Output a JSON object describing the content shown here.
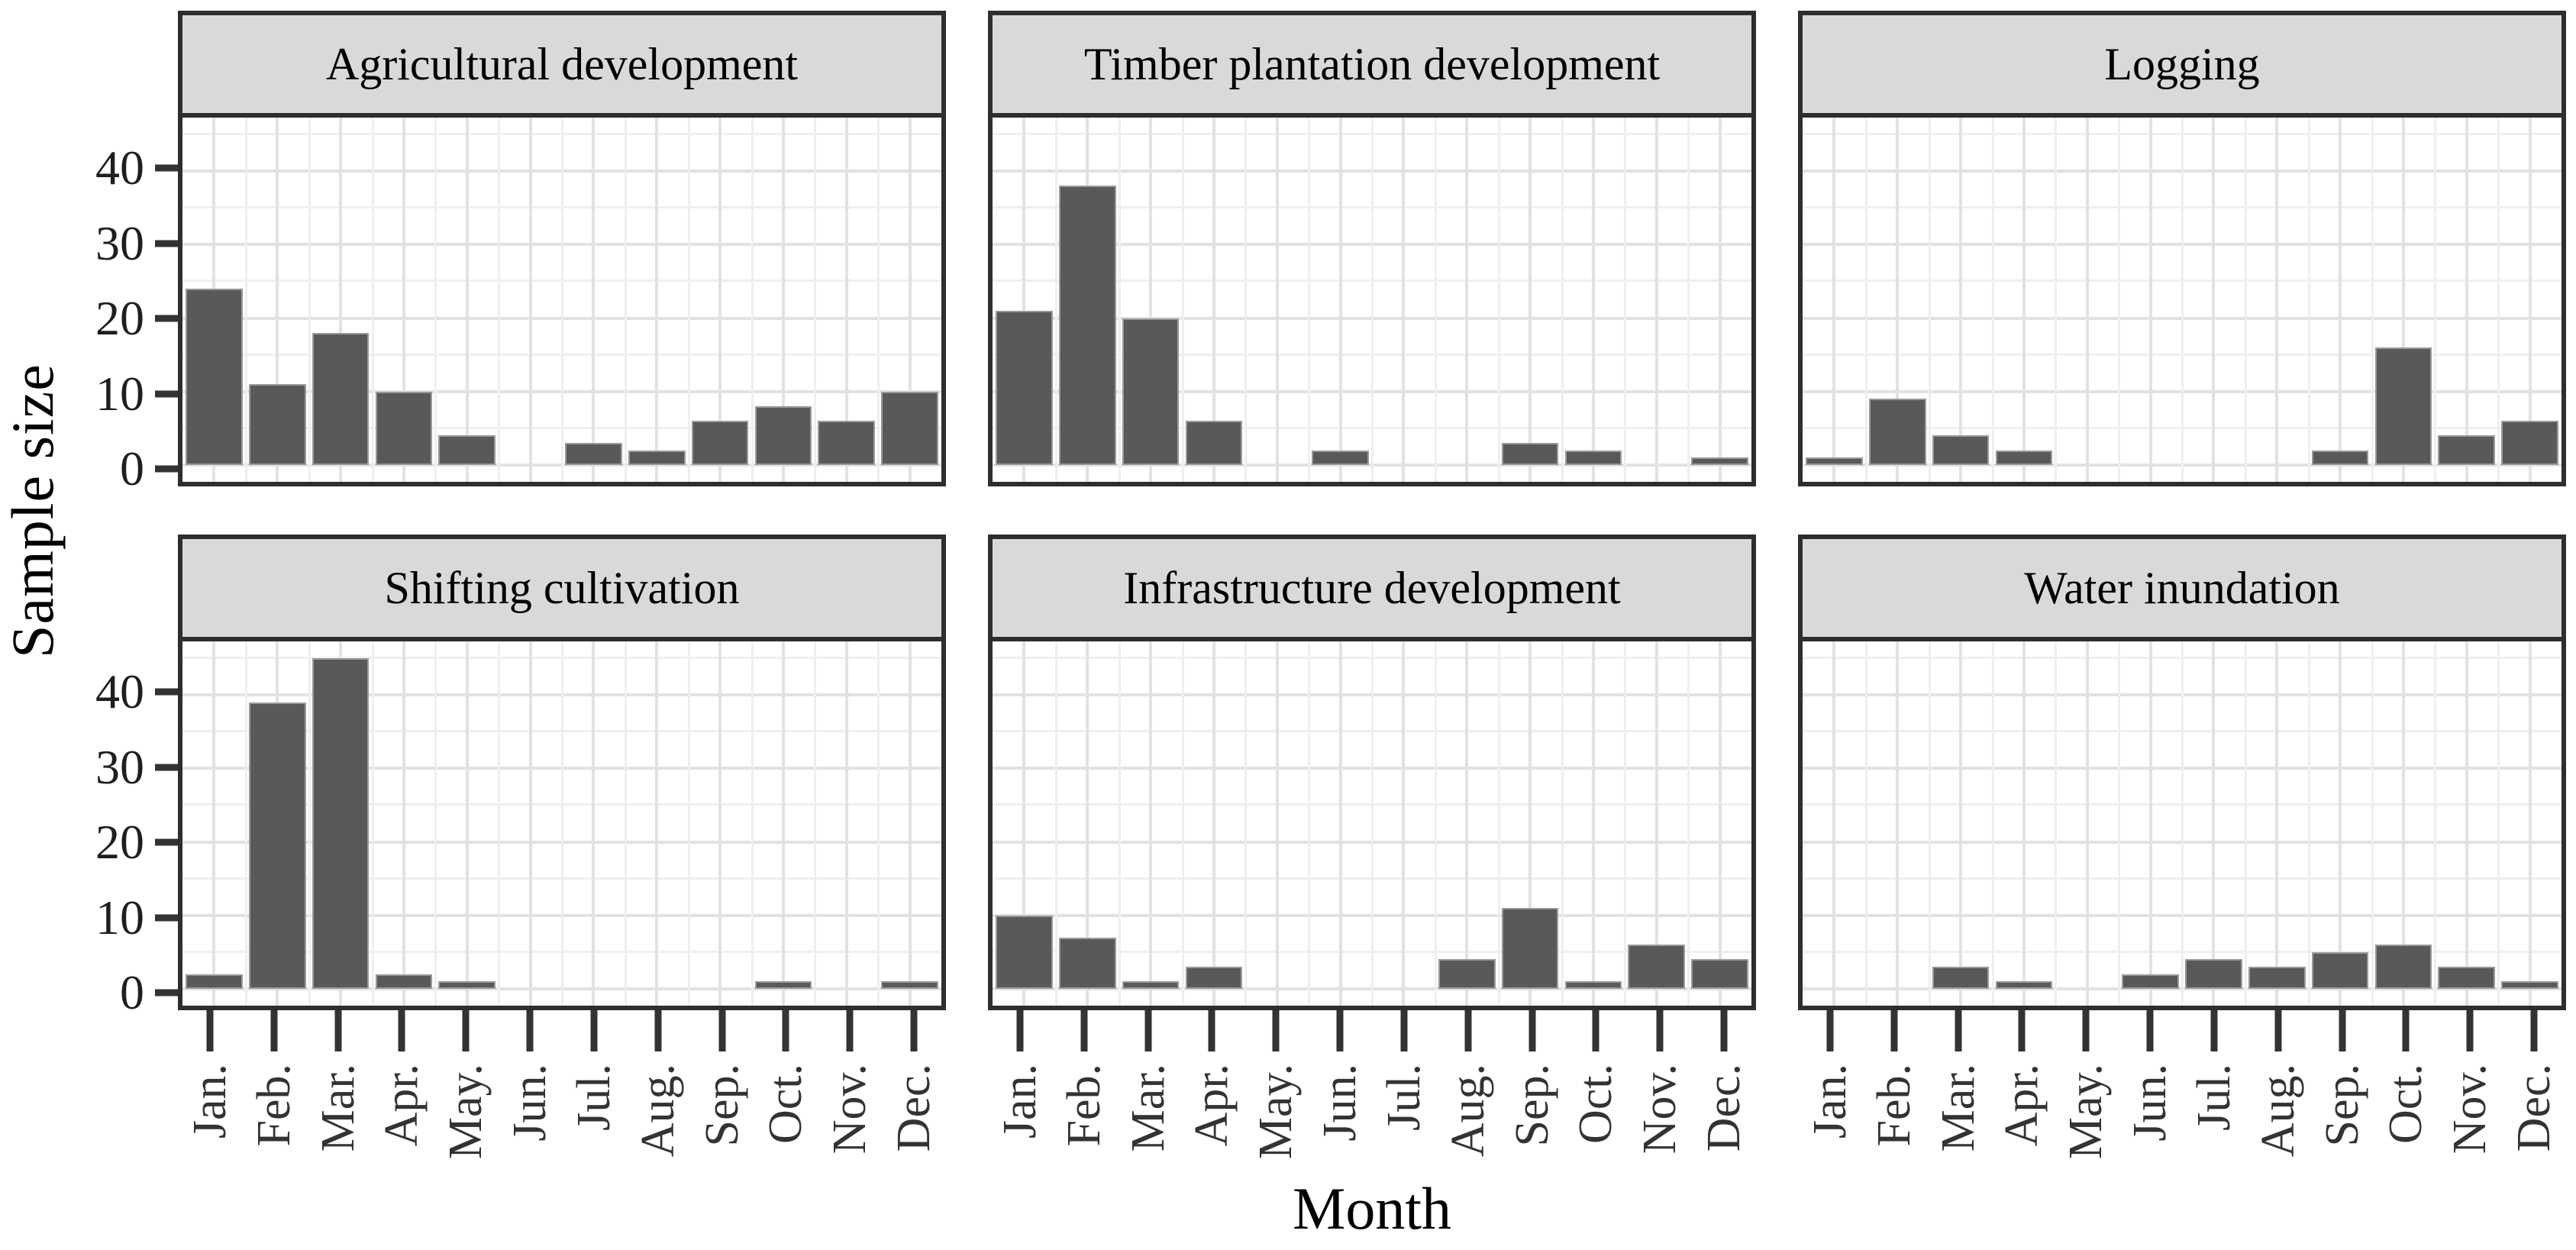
{
  "chart_data": {
    "type": "bar",
    "layout": "faceted-grid-2x3",
    "title": "",
    "xlabel": "Month",
    "ylabel": "Sample size",
    "categories": [
      "Jan.",
      "Feb.",
      "Mar.",
      "Apr.",
      "May.",
      "Jun.",
      "Jul.",
      "Aug.",
      "Sep.",
      "Oct.",
      "Nov.",
      "Dec."
    ],
    "y_ticks": [
      0,
      10,
      20,
      30,
      40
    ],
    "y_minor_ticks": [
      5,
      15,
      25,
      35,
      45
    ],
    "ylim": [
      -2.3,
      47.3
    ],
    "grid": "on",
    "bar_width_fraction": 0.9,
    "panels": [
      {
        "title": "Agricultural development",
        "values": [
          24,
          11,
          18,
          10,
          4,
          0,
          3,
          2,
          6,
          8,
          6,
          10
        ]
      },
      {
        "title": "Timber plantation development",
        "values": [
          21,
          38,
          20,
          6,
          0,
          2,
          0,
          0,
          3,
          2,
          0,
          1
        ]
      },
      {
        "title": "Logging",
        "values": [
          1,
          9,
          4,
          2,
          0,
          0,
          0,
          0,
          2,
          16,
          4,
          6
        ]
      },
      {
        "title": "Shifting cultivation",
        "values": [
          2,
          39,
          45,
          2,
          1,
          0,
          0,
          0,
          0,
          1,
          0,
          1
        ]
      },
      {
        "title": "Infrastructure development",
        "values": [
          10,
          7,
          1,
          3,
          0,
          0,
          0,
          4,
          11,
          1,
          6,
          4
        ]
      },
      {
        "title": "Water inundation",
        "values": [
          0,
          0,
          3,
          1,
          0,
          2,
          4,
          3,
          5,
          6,
          3,
          1
        ]
      }
    ],
    "colors": {
      "bar_fill": "#595959",
      "bar_stroke": "#9a9a9a",
      "panel_border": "#2e2e2e",
      "strip_background": "#d9d9d9",
      "grid_major": "#e2e2e2",
      "grid_minor": "#efefef",
      "tick_text": "#333333",
      "title_text": "#000000"
    }
  }
}
